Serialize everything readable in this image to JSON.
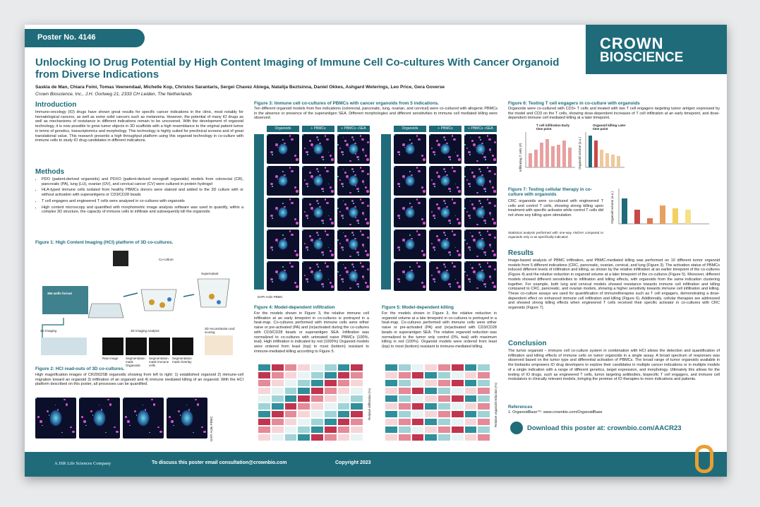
{
  "header": {
    "poster_no": "Poster No. 4146",
    "logo_top": "CROWN",
    "logo_bottom": "BIOSCIENCE",
    "title": "Unlocking IO Drug Potential by High Content Imaging of Immune Cell Co-cultures With Cancer Organoid from Diverse Indications",
    "authors": "Saskia de Man, Chiara Foini, Tomas Veenendaal, Michelle Kop, Christos Sarantaris, Sergei Chavez Abiega, Natalija Beztsinna, Daniel Okkes, Ashgard Weterings, Leo Price, Gera Goverse",
    "affiliation": "Crown Bioscience, Inc., J.H. Oortweg 21, 2333 CH Leiden, The Netherlands"
  },
  "introduction": {
    "heading": "Introduction",
    "text": "Immuno-oncology (IO) drugs have shown great results for specific cancer indications in the clinic, most notably for hematological cancers, as well as some solid cancers such as melanoma. However, the potential of many IO drugs as well as mechanisms of resistance in different indications remain to be uncovered. With the development of organoid technology, it is now possible to grow tumor objects in 3D scaffolds with a high resemblance to the original patient tumor in terms of genetics, transcriptomics and morphology. This technology is highly suited for preclinical screens and of great translational value. This research presents a high throughput platform using this organoid technology in co-culture with immune cells to study IO drug candidates in different indications."
  },
  "methods": {
    "heading": "Methods",
    "bullets": [
      "PDO (patient-derived organoids) and PDXO (patient-derived xenograft organoids) models from colorectal (CR), pancreatic (PA), lung (LU), ovarian (OV), and cervical cancer (CV) were cultured in protein hydrogel",
      "HLA-typed immune cells isolated from healthy PBMCs donors were stained and added to the 3D culture with or without activation with superantigens or CD3/CD28 beads",
      "T cell engagers and engineered T cells were analysed in co-cultures with organoids",
      "High content microscopy and quantified with morphometric image analysis software was used to quantify, within a complex 3D structure, the capacity of immune cells to infiltrate and subsequently kill the organoids"
    ]
  },
  "figure1": {
    "title": "Figure 1: High Content Imaging (HCI) platform of 3D co-cultures.",
    "labels": [
      "384 wells format",
      "Co-culture",
      "Supernatant",
      "3D Imaging",
      "3D Imaging Analysis",
      "3D reconstitution and scoring",
      "Raw image",
      "Segmentation mask Organoids",
      "Segmentation mask Immune cells",
      "Segmentation mask Overlay"
    ]
  },
  "figure2": {
    "title": "Figure 2: HCI read-outs of 3D co-cultures.",
    "text": "High magnification images of CR2002SB organoids showing from left to right: 1) established organoid 2) immune-cell migration toward an organoid 3) infiltration of an organoid and 4) immune mediated killing of an organoid. With the HCI platform described on this poster, all processes can be quantified.",
    "legend": "DAPI Actin PBMC"
  },
  "figure3": {
    "title": "Figure 3: Immune cell co-cultures of PBMCs with cancer organoids from 5 indications.",
    "text": "Ten different organoid models from five indications (colorectal, pancreatic, lung, ovarian, and cervical) were co-cultured with allogenic PBMCs in the absence or presence of the superantigen SEA. Different morphologies and different sensitivities to immune cell mediated killing were observed.",
    "columns": [
      "Organoids",
      "+ PBMCs",
      "+ PBMCs +SEA"
    ],
    "legend": "DAPI Actin PBMC"
  },
  "figure4": {
    "title": "Figure 4: Model-dependent infiltration",
    "text": "For the models shown in Figure 3, the relative immune cell infiltration at an early timepoint in co-cultures is portrayed in a heat-map. Co-cultures performed with immune cells were either naive or pre-activated (PA) and (re)activated during the co-cultures with CD3/CD28 beads or superantigen SEA. Infiltration was normalized to co-cultures with untreated naive PBMCs (100%, teal). High infiltration is indicated by red (1000%) Organoid models were ordered from least (top) to most (bottom) resistant to immune-mediated killing according to Figure 5.",
    "axis": "Relative infiltration (%)"
  },
  "figure5": {
    "title": "Figure 5: Model-dependent killing",
    "text": "For the models shown in Figure 3, the relative reduction in organoid volume at a late timepoint in co-cultures is portrayed in a heat-map. Co-cultures performed with immune cells were either naive or pre-activated (PA) and (re)activated with CD3/CD28 beads or superantigen SEA. The relative organoid reduction was normalized to the tumor only control (0%, teal) with maximum killing in red (100%). Organoid models were ordered from least (top) to most (bottom) resistant to immune-mediated killing.",
    "axis": "Relative organoid reduction (%)"
  },
  "figure6": {
    "title": "Figure 6: Testing T cell engagers in co-culture with organoids",
    "text": "Organoids were co-cultured with CD3+ T cells and treated with two T cell engagers targeting tumor antigen expressed by the model and CD3 on the T cells, showing dose-dependent increases of T cell infiltration at an early timepoint, and dose-dependent immune cell mediated killing at a later timepoint.",
    "panel_a": "T cell infiltration Early time point",
    "panel_b": "Organoid killing Later time point",
    "y_a": "Infiltrating T cells (#)",
    "y_b": "Organoid volume (a.u.)"
  },
  "figure7": {
    "title": "Figure 7: Testing cellular therapy in co-culture with organoids",
    "text": "CRC organoids were co-cultured with engineered T cells and control T cells, showing strong killing upon treatment with specific activator while control T cells did not show any killing upon stimulation.",
    "stats": "Statistical analysis performed with one-way ANOVA compared to organoids only or as specifically indicated",
    "y": "Organoid volume (a.u.)"
  },
  "results": {
    "heading": "Results",
    "text": "Image-based analysis of PBMC infiltration, and PBMC-mediated killing was performed on 10 different tumor organoid models from 5 different indications (CRC, pancreatic, ovarian, cervical, and lung (Figure 3). The activation status of PBMCs induced different levels of infiltration and killing, as shown by the relative infiltration at an earlier timepoint of the co-cultures (Figure 4) and the relative reduction in organoid volume at a later timepoint of the co-cultures (Figure 5). Moreover, different models showed different sensitivities to infiltration and killing effects, with organoids from the same indication clustering together. For example, both lung and cervical models showed resistance towards immune cell infiltration and killing compared to CRC, pancreatic, and ovarian models, showing a higher sensitivity towards immune cell infiltration and killing. These co-culture assays are used for quantification of immunotherapies such as T cell engagers, demonstrating a dose-dependent effect on enhanced immune cell infiltration and killing (Figure 6). Additionally, cellular therapies are addressed and showed strong killing effects when engineered T cells received their specific activator in co-cultures with CRC organoids (Figure 7)."
  },
  "conclusion": {
    "heading": "Conclusion",
    "text": "The tumor organoid – immune cell co-culture system in combination with HCI allows the detection and quantification of infiltration and killing effects of immune cells on tumor organoids in a single assay. A broad spectrum of responses was observed based on the tumor type and differential activation of PBMCs. The broad range of tumor organoids available in the biobanks empowers IO drug developers to explore their candidates in multiple cancer indications or in multiple models of a single indication with a range of different genetics, target expression, and morphology. Ultimately this allows for the testing of IO drugs, such as engineered T cells, tumor targeting antibodies, bispecific T cell engagers, and immune cell modulators in clinically relevant models, bringing the promise of IO therapies to more indications and patients."
  },
  "references": {
    "heading": "References",
    "items": [
      "1. OrganoidBase™: www.crownbio.com/OrganoidBase"
    ]
  },
  "download": "Download this poster at: crownbio.com/AACR23",
  "footer": {
    "company": "A JSR Life Sciences Company",
    "contact": "To discuss this poster email consultation@crownbio.com",
    "copyright": "Copyright 2023"
  }
}
